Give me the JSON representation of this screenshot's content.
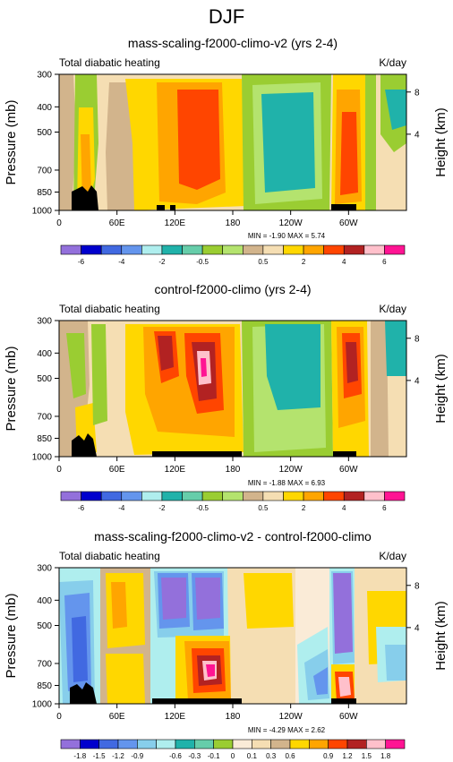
{
  "title": "DJF",
  "panels": [
    {
      "title": "mass-scaling-f2000-climo-v2 (yrs 2-4)",
      "left_string": "Total diabatic heating",
      "right_string": "K/day",
      "minmax": "MIN = -1.90  MAX =  5.74",
      "colorbar_key": "abs"
    },
    {
      "title": "control-f2000-climo (yrs 2-4)",
      "left_string": "Total diabatic heating",
      "right_string": "K/day",
      "minmax": "MIN = -1.88  MAX =  6.93",
      "colorbar_key": "abs"
    },
    {
      "title": "mass-scaling-f2000-climo-v2 - control-f2000-climo",
      "left_string": "Total diabatic heating",
      "right_string": "K/day",
      "minmax": "MIN = -4.29  MAX =  2.62",
      "colorbar_key": "diff"
    }
  ],
  "axes": {
    "ylabel": "Pressure (mb)",
    "y2label": "Height (km)",
    "yticks": [
      "300",
      "400",
      "500",
      "700",
      "850",
      "1000"
    ],
    "y2ticks": [
      "8",
      "4"
    ],
    "xticks": [
      "0",
      "60E",
      "120E",
      "180",
      "120W",
      "60W"
    ]
  },
  "colorbars": {
    "abs": {
      "colors": [
        "#9370db",
        "#0000cd",
        "#4169e1",
        "#6495ed",
        "#afeeee",
        "#20b2aa",
        "#66cdaa",
        "#9acd32",
        "#b4e36e",
        "#d2b48c",
        "#f5deb3",
        "#ffd700",
        "#ffa500",
        "#ff4500",
        "#b22222",
        "#ffc0cb",
        "#ff1493"
      ],
      "labels": [
        "-6",
        "-4",
        "-2",
        "-0.5",
        "0.5",
        "2",
        "4",
        "6"
      ]
    },
    "diff": {
      "colors": [
        "#9370db",
        "#0000cd",
        "#4169e1",
        "#6495ed",
        "#87ceeb",
        "#afeeee",
        "#20b2aa",
        "#66cdaa",
        "#9acd32",
        "#faebd7",
        "#f5deb3",
        "#d2b48c",
        "#ffd700",
        "#ffa500",
        "#ff4500",
        "#b22222",
        "#ffc0cb",
        "#ff1493"
      ],
      "labels": [
        "-1.8",
        "-1.5",
        "-1.2",
        "-0.9",
        "-0.6",
        "-0.3",
        "-0.1",
        "0",
        "0.1",
        "0.3",
        "0.6",
        "0.9",
        "1.2",
        "1.5",
        "1.8"
      ]
    }
  },
  "chart_data": [
    {
      "type": "heatmap",
      "title": "mass-scaling-f2000-climo-v2 (yrs 2-4)",
      "xlabel": "",
      "ylabel": "Pressure (mb)",
      "y2label": "Height (km)",
      "x": [
        "0",
        "60E",
        "120E",
        "180",
        "120W",
        "60W"
      ],
      "y": [
        300,
        400,
        500,
        700,
        850,
        1000
      ],
      "units": "K/day",
      "min": -1.9,
      "max": 5.74,
      "features": [
        {
          "lon": 25,
          "p": 900,
          "value": 4
        },
        {
          "lon": 110,
          "p": 600,
          "value": 2
        },
        {
          "lon": 145,
          "p": 650,
          "value": 4
        },
        {
          "lon": 230,
          "p": 600,
          "value": -0.5
        },
        {
          "lon": 292,
          "p": 650,
          "value": 4
        }
      ]
    },
    {
      "type": "heatmap",
      "title": "control-f2000-climo (yrs 2-4)",
      "xlabel": "",
      "ylabel": "Pressure (mb)",
      "y2label": "Height (km)",
      "x": [
        "0",
        "60E",
        "120E",
        "180",
        "120W",
        "60W"
      ],
      "y": [
        300,
        400,
        500,
        700,
        850,
        1000
      ],
      "units": "K/day",
      "min": -1.88,
      "max": 6.93,
      "features": [
        {
          "lon": 120,
          "p": 450,
          "value": 4
        },
        {
          "lon": 150,
          "p": 480,
          "value": 6
        },
        {
          "lon": 230,
          "p": 550,
          "value": -0.5
        },
        {
          "lon": 292,
          "p": 500,
          "value": 4
        }
      ]
    },
    {
      "type": "heatmap",
      "title": "mass-scaling-f2000-climo-v2 - control-f2000-climo",
      "xlabel": "",
      "ylabel": "Pressure (mb)",
      "y2label": "Height (km)",
      "x": [
        "0",
        "60E",
        "120E",
        "180",
        "120W",
        "60W"
      ],
      "y": [
        300,
        400,
        500,
        700,
        850,
        1000
      ],
      "units": "K/day",
      "min": -4.29,
      "max": 2.62,
      "features": [
        {
          "lon": 15,
          "p": 550,
          "value": -1.5
        },
        {
          "lon": 105,
          "p": 400,
          "value": -1.8
        },
        {
          "lon": 150,
          "p": 420,
          "value": -1.8
        },
        {
          "lon": 150,
          "p": 800,
          "value": 1.8
        },
        {
          "lon": 285,
          "p": 500,
          "value": -1.8
        },
        {
          "lon": 295,
          "p": 800,
          "value": 1.8
        }
      ]
    }
  ]
}
